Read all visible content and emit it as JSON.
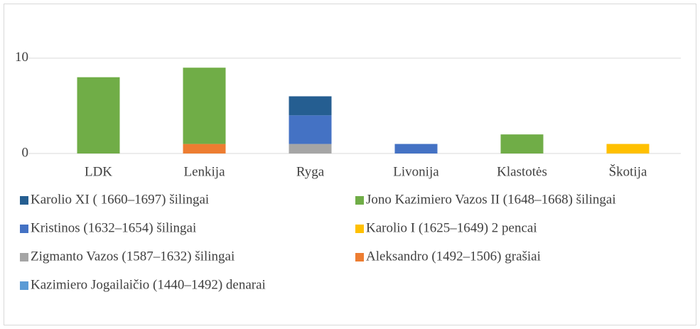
{
  "chart_data": {
    "type": "stacked_bar",
    "categories": [
      "LDK",
      "Lenkija",
      "Ryga",
      "Livonija",
      "Klastotės",
      "Škotija"
    ],
    "series": [
      {
        "name": "Karolio XI ( 1660–1697) šilingai",
        "color": "#255e91",
        "values": [
          0,
          0,
          2,
          0,
          0,
          0
        ]
      },
      {
        "name": "Jono Kazimiero Vazos II (1648–1668) šilingai",
        "color": "#70ad47",
        "values": [
          8,
          8,
          0,
          0,
          2,
          0
        ]
      },
      {
        "name": "Kristinos (1632–1654) šilingai",
        "color": "#4472c4",
        "values": [
          0,
          0,
          3,
          1,
          0,
          0
        ]
      },
      {
        "name": "Karolio I (1625–1649) 2 pencai",
        "color": "#ffc000",
        "values": [
          0,
          0,
          0,
          0,
          0,
          1
        ]
      },
      {
        "name": "Zigmanto Vazos (1587–1632) šilingai",
        "color": "#a5a5a5",
        "values": [
          0,
          0,
          1,
          0,
          0,
          0
        ]
      },
      {
        "name": "Aleksandro (1492–1506) grašiai",
        "color": "#ed7d31",
        "values": [
          0,
          1,
          0,
          0,
          0,
          0
        ]
      },
      {
        "name": "Kazimiero Jogailaičio (1440–1492) denarai",
        "color": "#5b9bd5",
        "values": [
          0,
          0,
          0,
          0,
          0,
          0
        ]
      }
    ],
    "ylim": [
      0,
      12
    ],
    "yticks": [
      0,
      10
    ],
    "grid": true
  }
}
